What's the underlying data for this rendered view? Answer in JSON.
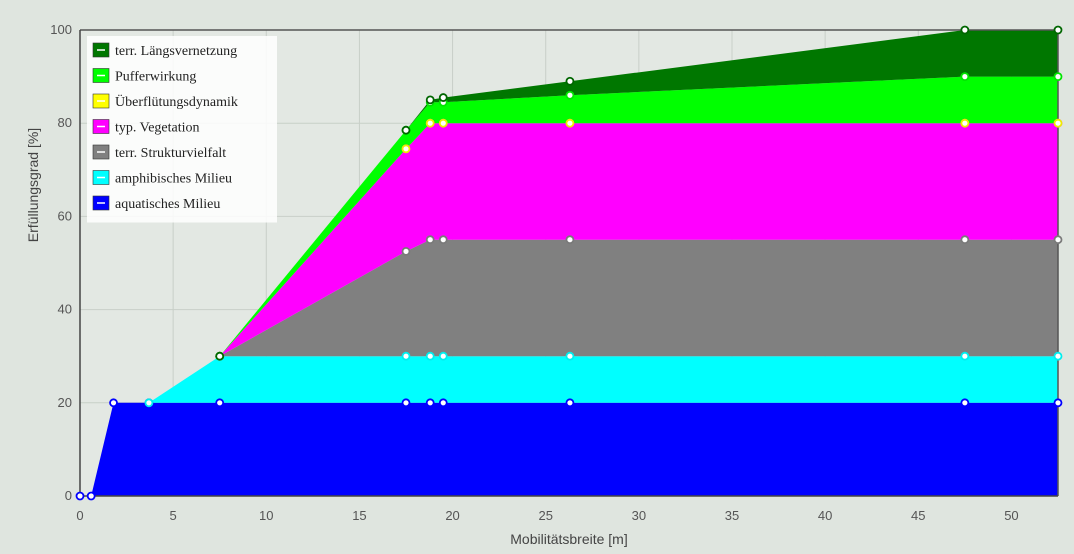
{
  "chart_data": {
    "type": "area",
    "stacked": true,
    "xlabel": "Mobilitätsbreite [m]",
    "ylabel": "Erfüllungsgrad [%]",
    "xlim": [
      0,
      52.5
    ],
    "ylim": [
      0,
      100
    ],
    "xticks": [
      0,
      5,
      10,
      15,
      20,
      25,
      30,
      35,
      40,
      45,
      50
    ],
    "yticks": [
      0,
      20,
      40,
      60,
      80,
      100
    ],
    "grid": true,
    "legend_position": "top-left",
    "background_color": "#dfe5df",
    "series": [
      {
        "name": "aquatisches Milieu",
        "color": "#0000ff",
        "marker_color": "#0000ff",
        "tops": [
          [
            0,
            0
          ],
          [
            0.6,
            0
          ],
          [
            1.8,
            20
          ],
          [
            3.7,
            20
          ],
          [
            7.5,
            20
          ],
          [
            17.5,
            20
          ],
          [
            18.8,
            20
          ],
          [
            19.5,
            20
          ],
          [
            26.3,
            20
          ],
          [
            47.5,
            20
          ],
          [
            52.5,
            20
          ]
        ]
      },
      {
        "name": "amphibisches Milieu",
        "color": "#00ffff",
        "marker_color": "#00eeee",
        "tops": [
          [
            3.7,
            20
          ],
          [
            7.5,
            30
          ],
          [
            17.5,
            30
          ],
          [
            18.8,
            30
          ],
          [
            19.5,
            30
          ],
          [
            26.3,
            30
          ],
          [
            47.5,
            30
          ],
          [
            52.5,
            30
          ]
        ]
      },
      {
        "name": "terr. Strukturvielfalt",
        "color": "#808080",
        "marker_color": "#7a7a7a",
        "tops": [
          [
            7.5,
            30
          ],
          [
            17.5,
            52.5
          ],
          [
            18.8,
            55
          ],
          [
            19.5,
            55
          ],
          [
            26.3,
            55
          ],
          [
            47.5,
            55
          ],
          [
            52.5,
            55
          ]
        ]
      },
      {
        "name": "typ. Vegetation",
        "color": "#ff00ff",
        "marker_color": "#ff00ff",
        "tops": [
          [
            7.5,
            30
          ],
          [
            17.5,
            74.5
          ],
          [
            18.8,
            80
          ],
          [
            19.5,
            80
          ],
          [
            26.3,
            80
          ],
          [
            47.5,
            80
          ],
          [
            52.5,
            80
          ]
        ]
      },
      {
        "name": "Überflütungsdynamik",
        "color": "#ffff00",
        "marker_color": "#eeee00",
        "tops": [
          [
            7.5,
            30
          ],
          [
            17.5,
            74.5
          ],
          [
            18.8,
            80
          ],
          [
            19.5,
            80
          ],
          [
            26.3,
            80
          ],
          [
            47.5,
            80
          ],
          [
            52.5,
            80
          ]
        ]
      },
      {
        "name": "Pufferwirkung",
        "color": "#00ff00",
        "marker_color": "#00e600",
        "tops": [
          [
            7.5,
            30
          ],
          [
            17.5,
            78.5
          ],
          [
            18.8,
            84.5
          ],
          [
            19.5,
            84.5
          ],
          [
            26.3,
            86
          ],
          [
            47.5,
            90
          ],
          [
            52.5,
            90
          ]
        ]
      },
      {
        "name": "terr. Längsvernetzung",
        "color": "#007700",
        "marker_color": "#006600",
        "tops": [
          [
            7.5,
            30
          ],
          [
            17.5,
            78.5
          ],
          [
            18.8,
            85
          ],
          [
            19.5,
            85.5
          ],
          [
            26.3,
            89
          ],
          [
            47.5,
            100
          ],
          [
            52.5,
            100
          ]
        ]
      }
    ]
  }
}
